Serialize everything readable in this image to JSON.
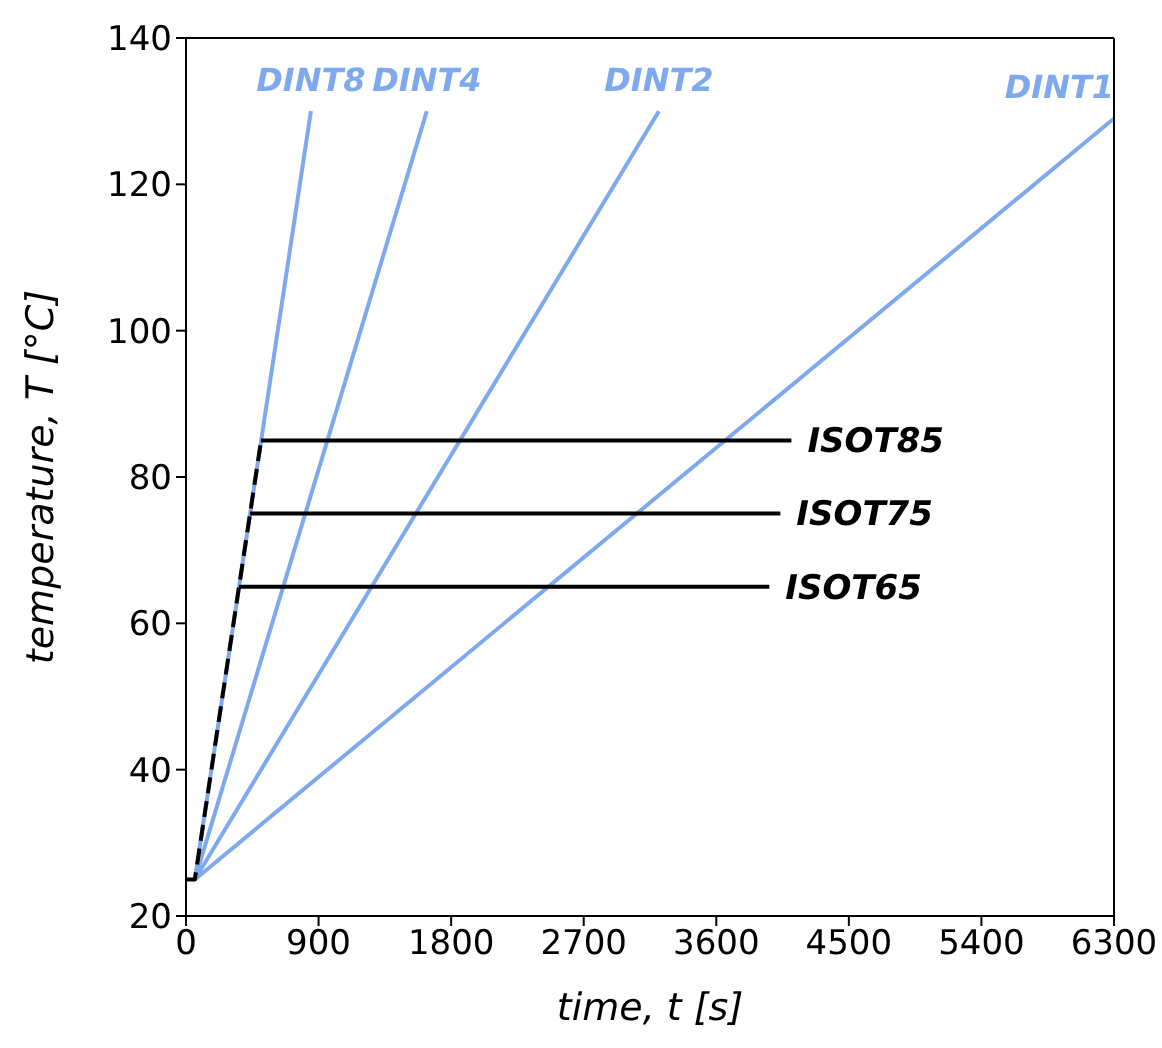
{
  "chart_data": {
    "type": "line",
    "xlabel": "time, t  [s]",
    "ylabel": "temperature, T  [°C]",
    "xlim": [
      0,
      6300
    ],
    "xticks": [
      0,
      900,
      1800,
      2700,
      3600,
      4500,
      5400,
      6300
    ],
    "ylim": [
      20,
      140
    ],
    "yticks": [
      20,
      40,
      60,
      80,
      100,
      120,
      140
    ],
    "legend": false,
    "marker": "none",
    "series": [
      {
        "name": "DINT1",
        "color": "#7fa9ee",
        "x": [
          60,
          6300
        ],
        "values": [
          25,
          129
        ],
        "line_style": "solid"
      },
      {
        "name": "DINT2",
        "color": "#7fa9ee",
        "x": [
          60,
          3210
        ],
        "values": [
          25,
          130
        ],
        "line_style": "solid"
      },
      {
        "name": "DINT4",
        "color": "#7fa9ee",
        "x": [
          60,
          1635
        ],
        "values": [
          25,
          130
        ],
        "line_style": "solid"
      },
      {
        "name": "DINT8",
        "color": "#7fa9ee",
        "x": [
          60,
          848
        ],
        "values": [
          25,
          130
        ],
        "line_style": "solid"
      },
      {
        "color": "#000000",
        "x": [
          0,
          60,
          510
        ],
        "values": [
          25,
          25,
          85
        ],
        "line_style": "dashed"
      },
      {
        "name": "ISOT85",
        "color": "#000000",
        "x": [
          510,
          4110
        ],
        "values": [
          85,
          85
        ],
        "line_style": "solid"
      },
      {
        "name": "ISOT75",
        "color": "#000000",
        "x": [
          435,
          4035
        ],
        "values": [
          75,
          75
        ],
        "line_style": "solid"
      },
      {
        "name": "ISOT65",
        "color": "#000000",
        "x": [
          360,
          3960
        ],
        "values": [
          65,
          65
        ],
        "line_style": "solid"
      }
    ]
  }
}
